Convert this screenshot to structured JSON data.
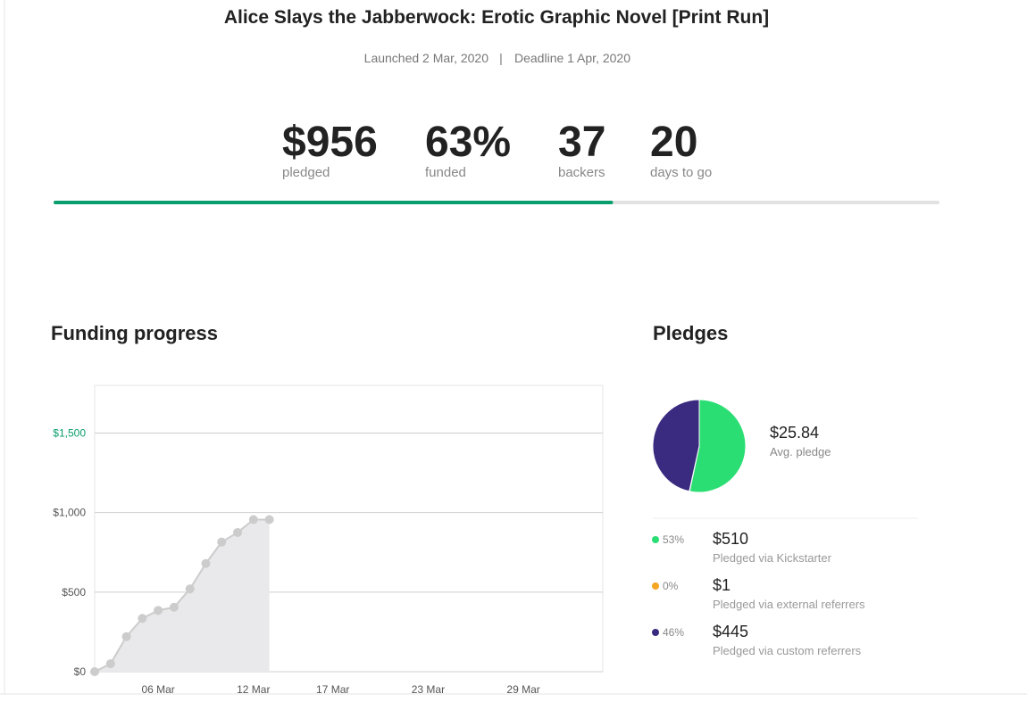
{
  "header": {
    "title": "Alice Slays the Jabberwock: Erotic Graphic Novel [Print Run]",
    "launched": "Launched 2 Mar, 2020",
    "separator": "|",
    "deadline": "Deadline 1 Apr, 2020"
  },
  "stats": [
    {
      "value": "$956",
      "label": "pledged"
    },
    {
      "value": "63%",
      "label": "funded"
    },
    {
      "value": "37",
      "label": "backers"
    },
    {
      "value": "20",
      "label": "days to go"
    }
  ],
  "progress_percent": 63,
  "funding": {
    "type": "line",
    "title": "Funding progress",
    "x": [
      "02 Mar",
      "03 Mar",
      "04 Mar",
      "05 Mar",
      "06 Mar",
      "07 Mar",
      "08 Mar",
      "09 Mar",
      "10 Mar",
      "11 Mar",
      "12 Mar",
      "13 Mar"
    ],
    "values": [
      0,
      50,
      220,
      335,
      385,
      405,
      520,
      680,
      815,
      875,
      956,
      956
    ],
    "xlim": [
      "02 Mar",
      "03 Apr"
    ],
    "xticks": [
      "06 Mar",
      "12 Mar",
      "17 Mar",
      "23 Mar",
      "29 Mar"
    ],
    "ylim": [
      0,
      1800
    ],
    "yticks": [
      {
        "value": 0,
        "label": "$0"
      },
      {
        "value": 500,
        "label": "$500"
      },
      {
        "value": 1000,
        "label": "$1,000"
      },
      {
        "value": 1500,
        "label": "$1,500"
      }
    ],
    "color": "#cccccc",
    "area_color": "#e9e9eb",
    "grid": true
  },
  "pledges": {
    "type": "pie",
    "title": "Pledges",
    "average": "$25.84",
    "average_label": "Avg. pledge",
    "categories": [
      "Pledged via Kickstarter",
      "Pledged via external referrers",
      "Pledged via custom referrers"
    ],
    "values": [
      510,
      1,
      445
    ],
    "value_labels": [
      "$510",
      "$1",
      "$445"
    ],
    "percent_labels": [
      "53%",
      "0%",
      "46%"
    ],
    "colors": [
      "#2bde73",
      "#f5a623",
      "#3a2a80"
    ]
  }
}
